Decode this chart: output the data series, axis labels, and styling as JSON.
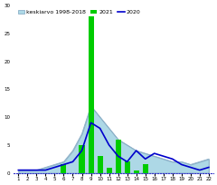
{
  "weeks": [
    1,
    2,
    3,
    4,
    5,
    6,
    7,
    8,
    9,
    10,
    11,
    12,
    13,
    14,
    15,
    16,
    17,
    18,
    19,
    20,
    21,
    22
  ],
  "avg_1998_2018": [
    0.5,
    0.5,
    0.5,
    1,
    1.5,
    2,
    4,
    7,
    12,
    10,
    8,
    6,
    5,
    4,
    3.5,
    3,
    2.5,
    2,
    2,
    1.5,
    2,
    2.5
  ],
  "bars_2021": [
    0,
    0,
    0,
    0,
    0,
    1.5,
    0,
    5,
    28,
    3,
    1,
    6,
    2,
    0.5,
    1.5,
    0,
    0,
    0,
    0,
    0,
    0,
    0
  ],
  "line_2020": [
    0.5,
    0.5,
    0.5,
    0.5,
    1,
    1.5,
    2,
    4,
    9,
    8,
    5,
    3,
    2,
    4,
    2.5,
    3.5,
    3,
    2.5,
    1.5,
    1,
    0.5,
    1
  ],
  "avg_color": "#add8e6",
  "avg_edge_color": "#8cb0c8",
  "bar_color": "#00cc00",
  "line_color": "#0000cc",
  "legend_avg": "keskiarvo 1998-2018",
  "legend_2021": "2021",
  "legend_2020": "2020",
  "bg_color": "#ffffff",
  "ylim": [
    0,
    30
  ]
}
